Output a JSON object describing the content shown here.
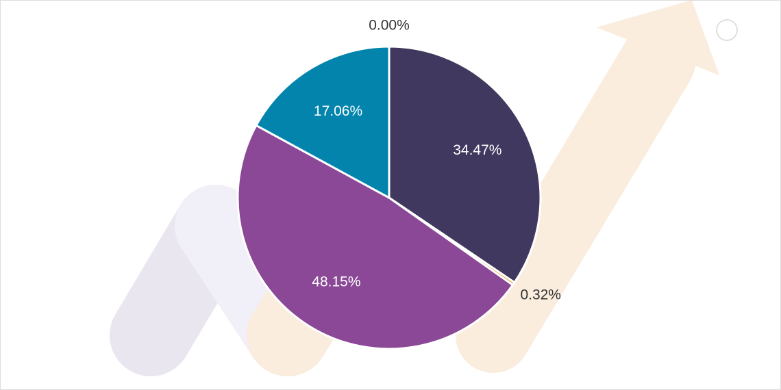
{
  "chart_data": {
    "type": "pie",
    "values": [
      34.47,
      0.32,
      48.15,
      17.06,
      0.0
    ],
    "value_labels": [
      "34.47%",
      "0.32%",
      "48.15%",
      "17.06%",
      "0.00%"
    ],
    "colors": [
      "#40385e",
      "#e8a33c",
      "#8a4896",
      "#0284ac",
      "#9e9e9e"
    ]
  }
}
